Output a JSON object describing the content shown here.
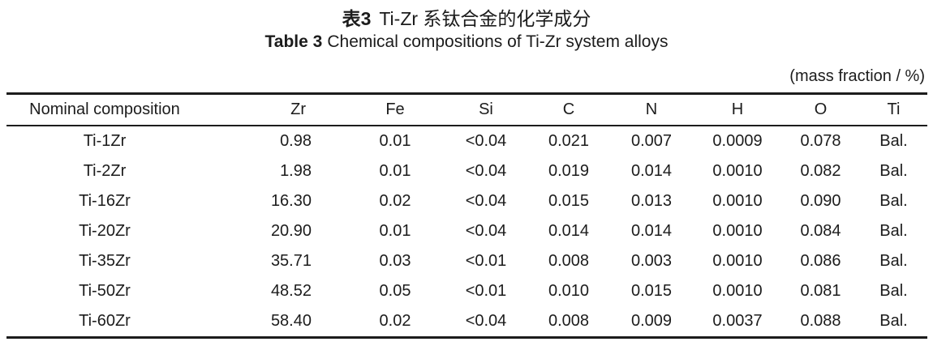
{
  "caption": {
    "cn_label": "表3",
    "cn_text": "Ti-Zr 系钛合金的化学成分",
    "en_label": "Table 3",
    "en_text": "Chemical compositions of Ti-Zr system alloys",
    "unit_note": "(mass fraction / %)"
  },
  "table": {
    "columns": [
      "Nominal composition",
      "Zr",
      "Fe",
      "Si",
      "C",
      "N",
      "H",
      "O",
      "Ti"
    ],
    "rows": [
      [
        "Ti-1Zr",
        "0.98",
        "0.01",
        "<0.04",
        "0.021",
        "0.007",
        "0.0009",
        "0.078",
        "Bal."
      ],
      [
        "Ti-2Zr",
        "1.98",
        "0.01",
        "<0.04",
        "0.019",
        "0.014",
        "0.0010",
        "0.082",
        "Bal."
      ],
      [
        "Ti-16Zr",
        "16.30",
        "0.02",
        "<0.04",
        "0.015",
        "0.013",
        "0.0010",
        "0.090",
        "Bal."
      ],
      [
        "Ti-20Zr",
        "20.90",
        "0.01",
        "<0.04",
        "0.014",
        "0.014",
        "0.0010",
        "0.084",
        "Bal."
      ],
      [
        "Ti-35Zr",
        "35.71",
        "0.03",
        "<0.01",
        "0.008",
        "0.003",
        "0.0010",
        "0.086",
        "Bal."
      ],
      [
        "Ti-50Zr",
        "48.52",
        "0.05",
        "<0.01",
        "0.010",
        "0.015",
        "0.0010",
        "0.081",
        "Bal."
      ],
      [
        "Ti-60Zr",
        "58.40",
        "0.02",
        "<0.04",
        "0.008",
        "0.009",
        "0.0037",
        "0.088",
        "Bal."
      ]
    ]
  },
  "chart_data": {
    "type": "table",
    "title": "Table 3 Chemical compositions of Ti-Zr system alloys",
    "title_cn": "表3 Ti-Zr 系钛合金的化学成分",
    "unit": "mass fraction / %",
    "columns": [
      "Nominal composition",
      "Zr",
      "Fe",
      "Si",
      "C",
      "N",
      "H",
      "O",
      "Ti"
    ],
    "rows": [
      [
        "Ti-1Zr",
        "0.98",
        "0.01",
        "<0.04",
        "0.021",
        "0.007",
        "0.0009",
        "0.078",
        "Bal."
      ],
      [
        "Ti-2Zr",
        "1.98",
        "0.01",
        "<0.04",
        "0.019",
        "0.014",
        "0.0010",
        "0.082",
        "Bal."
      ],
      [
        "Ti-16Zr",
        "16.30",
        "0.02",
        "<0.04",
        "0.015",
        "0.013",
        "0.0010",
        "0.090",
        "Bal."
      ],
      [
        "Ti-20Zr",
        "20.90",
        "0.01",
        "<0.04",
        "0.014",
        "0.014",
        "0.0010",
        "0.084",
        "Bal."
      ],
      [
        "Ti-35Zr",
        "35.71",
        "0.03",
        "<0.01",
        "0.008",
        "0.003",
        "0.0010",
        "0.086",
        "Bal."
      ],
      [
        "Ti-50Zr",
        "48.52",
        "0.05",
        "<0.01",
        "0.010",
        "0.015",
        "0.0010",
        "0.081",
        "Bal."
      ],
      [
        "Ti-60Zr",
        "58.40",
        "0.02",
        "<0.04",
        "0.008",
        "0.009",
        "0.0037",
        "0.088",
        "Bal."
      ]
    ]
  },
  "colors": {
    "background": "#ffffff",
    "text": "#1c1c1c",
    "rule": "#1c1c1c"
  }
}
